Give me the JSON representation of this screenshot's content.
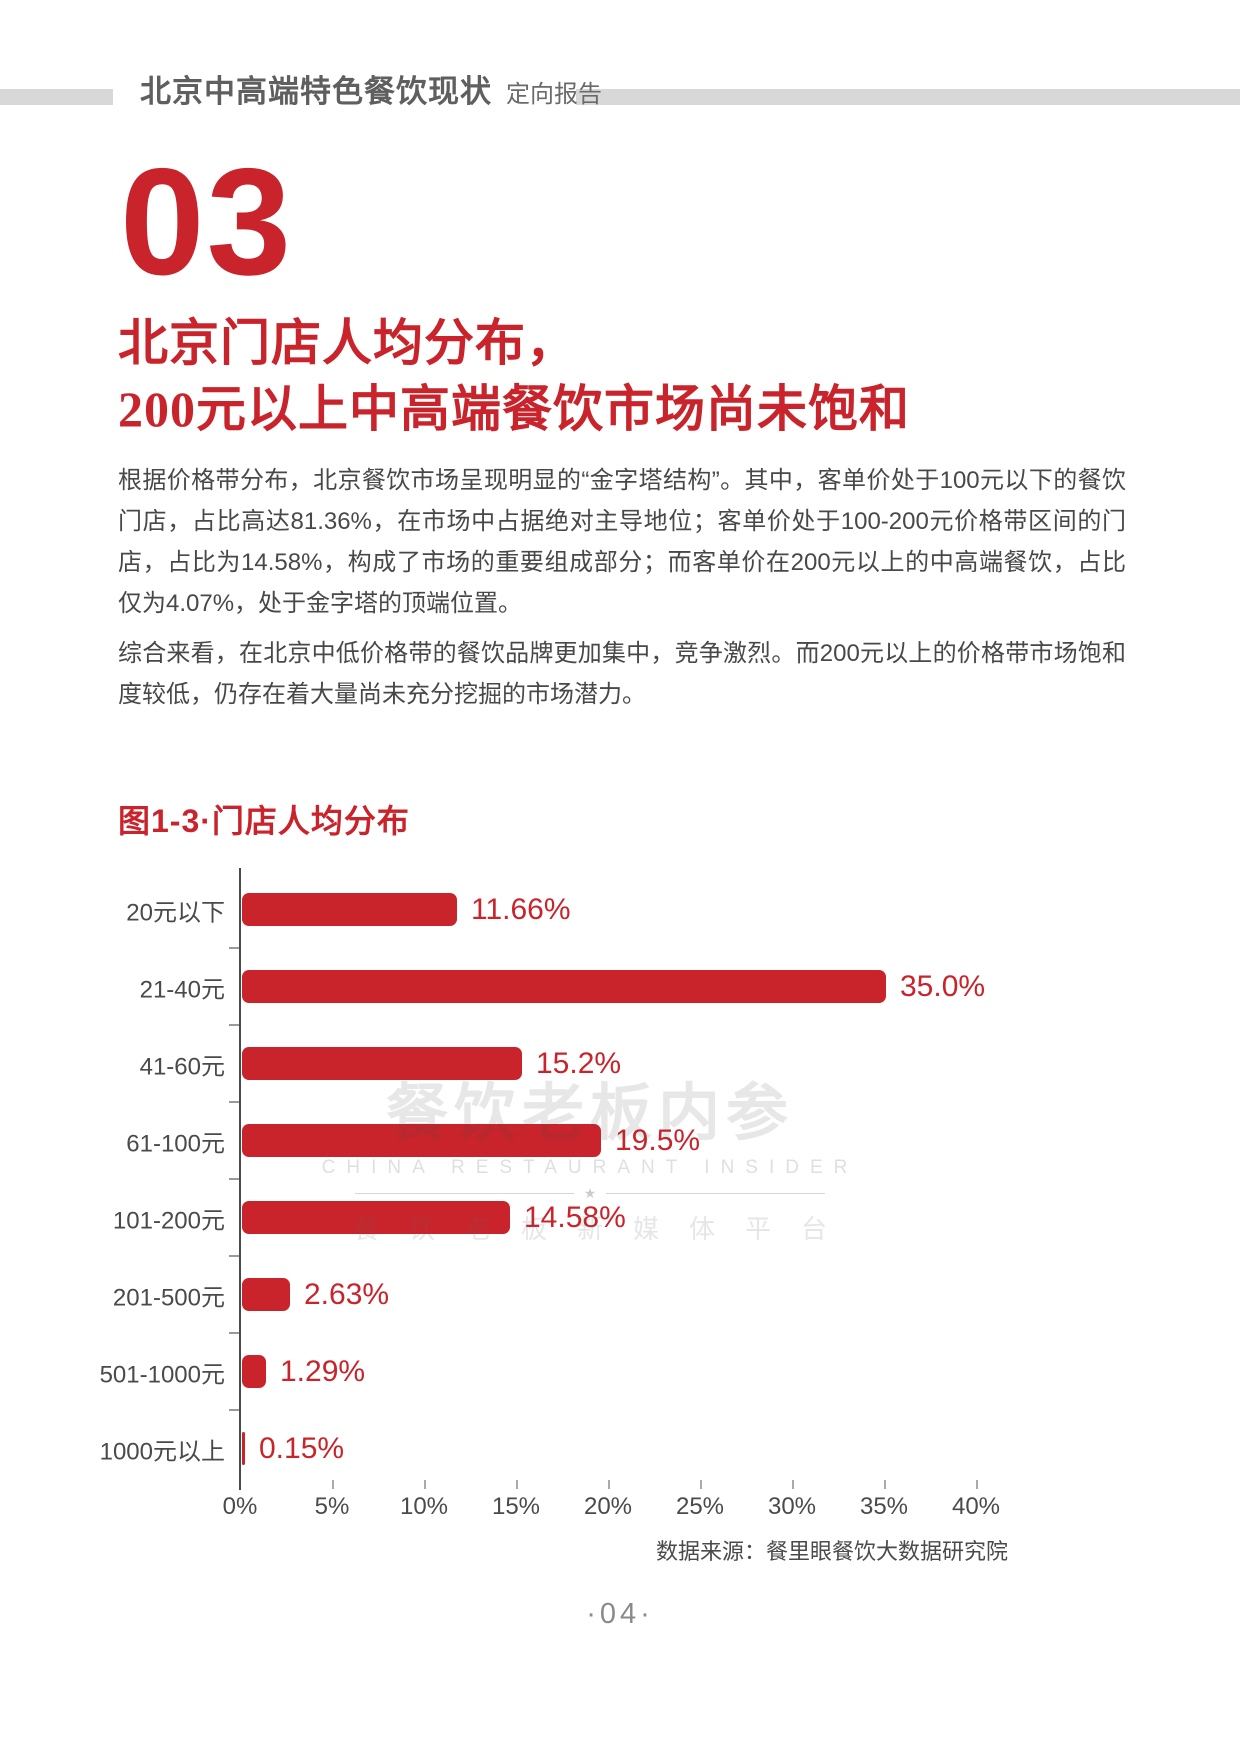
{
  "colors": {
    "accent": "#C9242B",
    "header_band": "#D8D8D8",
    "body_text": "#484848",
    "muted_text": "#8A8A8A"
  },
  "header": {
    "title": "北京中高端特色餐饮现状",
    "subtitle": "定向报告"
  },
  "section": {
    "number": "03",
    "headline_line1": "北京门店人均分布，",
    "headline_line2": "200元以上中高端餐饮市场尚未饱和"
  },
  "paragraphs": [
    "根据价格带分布，北京餐饮市场呈现明显的“金字塔结构”。其中，客单价处于100元以下的餐饮门店，占比高达81.36%，在市场中占据绝对主导地位；客单价处于100-200元价格带区间的门店，占比为14.58%，构成了市场的重要组成部分；而客单价在200元以上的中高端餐饮，占比仅为4.07%，处于金字塔的顶端位置。",
    "综合来看，在北京中低价格带的餐饮品牌更加集中，竞争激烈。而200元以上的价格带市场饱和度较低，仍存在着大量尚未充分挖掘的市场潜力。"
  ],
  "chart_data": {
    "type": "bar",
    "orientation": "horizontal",
    "title": "图1-3·门店人均分布",
    "categories": [
      "20元以下",
      "21-40元",
      "41-60元",
      "61-100元",
      "101-200元",
      "201-500元",
      "501-1000元",
      "1000元以上"
    ],
    "values": [
      11.66,
      35.0,
      15.2,
      19.5,
      14.58,
      2.63,
      1.29,
      0.15
    ],
    "value_labels": [
      "11.66%",
      "35.0%",
      "15.2%",
      "19.5%",
      "14.58%",
      "2.63%",
      "1.29%",
      "0.15%"
    ],
    "x_ticks": [
      "0%",
      "5%",
      "10%",
      "15%",
      "20%",
      "25%",
      "30%",
      "35%",
      "40%"
    ],
    "xlim": [
      0,
      40
    ],
    "grid": false,
    "legend": false,
    "bar_color": "#C9242B"
  },
  "watermark": {
    "line1": "餐饮老板内参",
    "line2": "CHINA RESTAURANT INSIDER",
    "star": "★",
    "line3": "餐饮老板新媒体平台"
  },
  "footer": {
    "source": "数据来源：餐里眼餐饮大数据研究院",
    "page_number": "·04·"
  }
}
